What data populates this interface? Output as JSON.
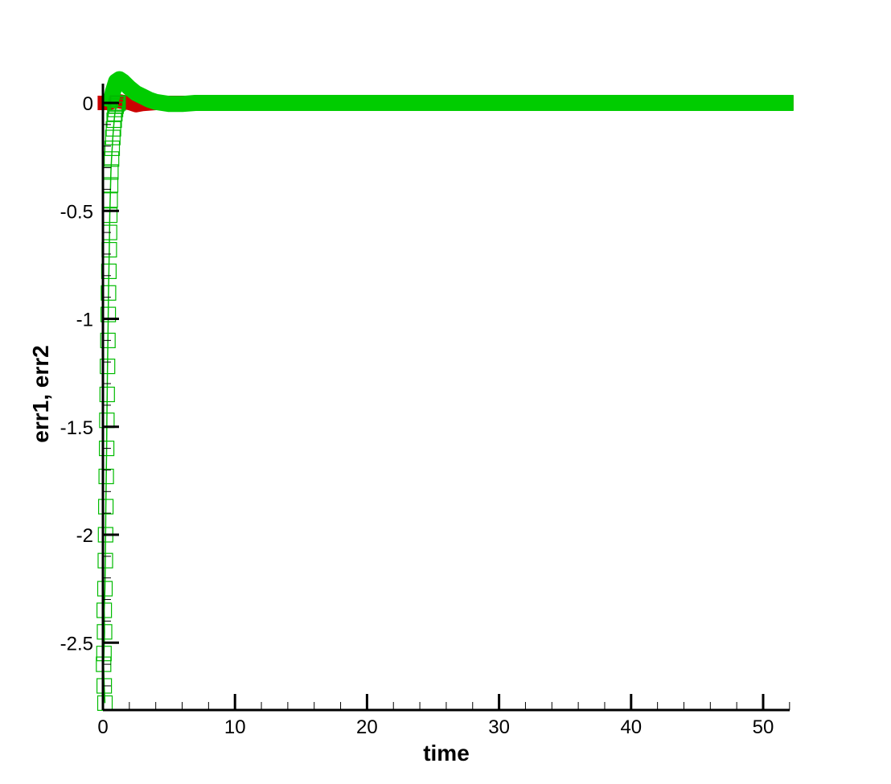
{
  "chart_data": {
    "type": "line",
    "title": "",
    "xlabel": "time",
    "ylabel": "err1, err2",
    "xlim": [
      0,
      52.3
    ],
    "ylim": [
      -2.8,
      0.12
    ],
    "xticks": [
      0,
      10,
      20,
      30,
      40,
      50
    ],
    "xtick_labels": [
      "0",
      "10",
      "20",
      "30",
      "40",
      "50"
    ],
    "yticks": [
      0,
      -0.5,
      -1,
      -1.5,
      -2,
      -2.5
    ],
    "ytick_labels": [
      "0",
      "-0.5",
      "-1",
      "-1.5",
      "-2",
      "-2.5"
    ],
    "grid": false,
    "legend": "none",
    "series": [
      {
        "color": "#cc0000",
        "style": "thick-line",
        "x": [
          -0.4,
          0,
          0.5,
          1,
          1.5,
          2,
          2.5,
          3,
          4,
          5,
          52.3
        ],
        "y": [
          0,
          0,
          0,
          0.01,
          0.005,
          0,
          -0.01,
          -0.005,
          0,
          0,
          0
        ]
      },
      {
        "color": "#00cc00",
        "style": "thick-line",
        "x": [
          0.5,
          0.75,
          1,
          1.25,
          1.5,
          2,
          2.5,
          3,
          3.5,
          4,
          4.5,
          5,
          6,
          7,
          52.3
        ],
        "y": [
          -0.02,
          0.05,
          0.1,
          0.11,
          0.1,
          0.07,
          0.045,
          0.03,
          0.015,
          0.005,
          0,
          -0.005,
          -0.005,
          0,
          0
        ]
      },
      {
        "color": "#00bb00",
        "style": "hollow-square-markers",
        "x": [
          0.15,
          0.1,
          0.05,
          0.08,
          0.12,
          0.1,
          0.15,
          0.18,
          0.2,
          0.22,
          0.25,
          0.28,
          0.3,
          0.32,
          0.35,
          0.38,
          0.4,
          0.42,
          0.45,
          0.48,
          0.5,
          0.52,
          0.55,
          0.58,
          0.6,
          0.65,
          0.7,
          0.75,
          0.8,
          0.85,
          0.9,
          0.95,
          1.0,
          1.05,
          1.1,
          1.15
        ],
        "y": [
          -2.78,
          -2.7,
          -2.6,
          -2.55,
          -2.45,
          -2.35,
          -2.25,
          -2.12,
          -2.0,
          -1.87,
          -1.73,
          -1.6,
          -1.47,
          -1.35,
          -1.22,
          -1.1,
          -0.98,
          -0.88,
          -0.78,
          -0.68,
          -0.6,
          -0.52,
          -0.45,
          -0.38,
          -0.32,
          -0.26,
          -0.21,
          -0.16,
          -0.12,
          -0.08,
          -0.05,
          -0.03,
          -0.015,
          -0.005,
          0,
          0
        ]
      }
    ]
  }
}
